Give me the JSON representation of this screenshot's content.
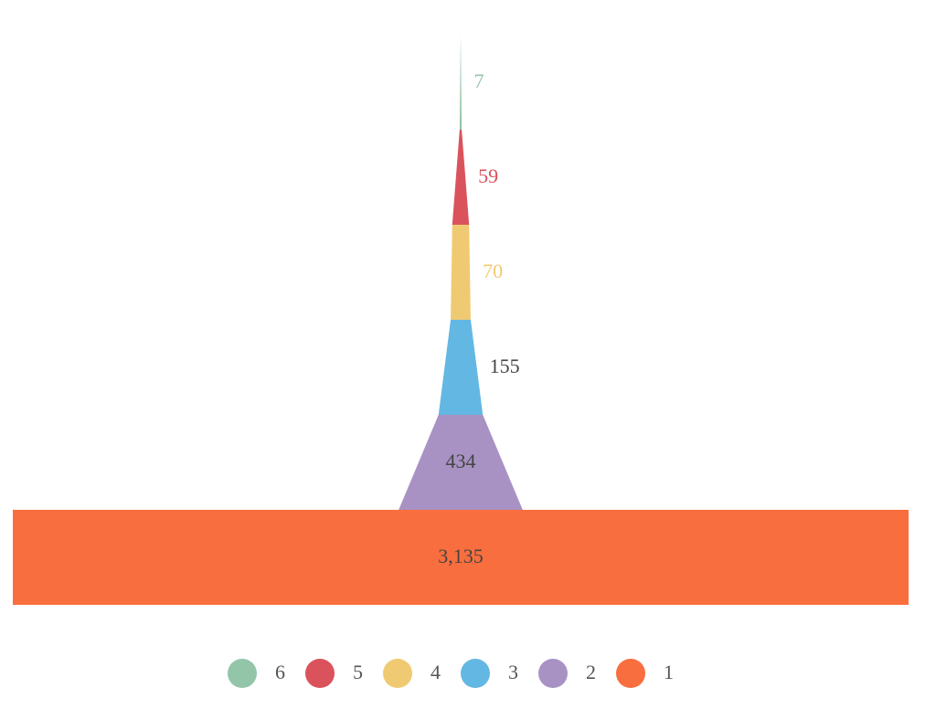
{
  "chart_data": {
    "type": "funnel",
    "categories": [
      "6",
      "5",
      "4",
      "3",
      "2",
      "1"
    ],
    "values": [
      7,
      59,
      70,
      155,
      434,
      3135
    ],
    "value_labels": [
      "7",
      "59",
      "70",
      "155",
      "434",
      "3,135"
    ],
    "colors": [
      "#93c5a9",
      "#da535c",
      "#f0ca72",
      "#63b7e3",
      "#a892c4",
      "#f96e3e"
    ],
    "label_colors": [
      "#93c5a9",
      "#da535c",
      "#f0ca72",
      "#444444",
      "#444444",
      "#444444"
    ],
    "legend": {
      "placement": "bottom-center",
      "items": [
        "6",
        "5",
        "4",
        "3",
        "2",
        "1"
      ]
    }
  }
}
